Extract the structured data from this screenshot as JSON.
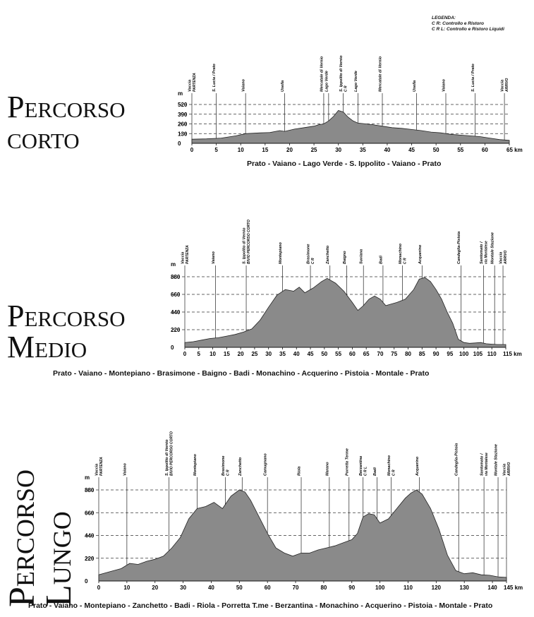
{
  "legend": {
    "title": "LEGENDA:",
    "items": [
      "C R: Controllo e Ristoro",
      "C R L: Controllo e Ristoro Liquidi"
    ]
  },
  "colors": {
    "fill": "#8a8a8a",
    "stroke": "#222222",
    "dash": "#333333"
  },
  "chart_data": [
    {
      "type": "area",
      "title": "Percorso corto",
      "title_lines": [
        "Percorso",
        "corto"
      ],
      "subtitle": "Prato - Vaiano - Lago Verde - S. Ippolito - Vaiano - Prato",
      "ylabel": "m",
      "xunit": "km",
      "xlim": [
        0,
        65
      ],
      "ylim": [
        0,
        520
      ],
      "xticks": [
        0,
        5,
        10,
        15,
        20,
        25,
        30,
        35,
        40,
        45,
        50,
        55,
        60,
        65
      ],
      "xtick_labels": [
        "0",
        "5",
        "10",
        "15",
        "20",
        "25",
        "30",
        "35",
        "40",
        "45",
        "50",
        "55",
        "60",
        "65 km"
      ],
      "yticks": [
        0,
        130,
        260,
        390,
        520
      ],
      "series": [
        {
          "x": [
            0,
            3,
            6,
            9,
            11,
            14,
            16,
            18,
            19,
            21,
            23,
            25,
            26,
            27,
            28,
            29,
            30,
            31,
            32,
            33,
            34,
            35,
            37,
            39,
            41,
            43,
            45,
            47,
            49,
            51,
            53,
            55,
            57,
            59,
            61,
            63,
            65
          ],
          "values": [
            55,
            60,
            70,
            100,
            130,
            140,
            145,
            170,
            160,
            190,
            210,
            230,
            250,
            260,
            300,
            360,
            440,
            420,
            350,
            300,
            270,
            265,
            250,
            230,
            210,
            200,
            185,
            170,
            150,
            140,
            120,
            110,
            100,
            90,
            70,
            50,
            40
          ]
        }
      ],
      "markers": [
        {
          "x": 0,
          "label": "Vaccia",
          "sub": "PARTENZA"
        },
        {
          "x": 5,
          "label": "S. Lucia / Prato",
          "sub": ""
        },
        {
          "x": 11,
          "label": "Vaiano",
          "sub": ""
        },
        {
          "x": 19,
          "label": "Usella",
          "sub": ""
        },
        {
          "x": 27,
          "label": "Mercatale di Vernio",
          "sub": ""
        },
        {
          "x": 28,
          "label": "Lago Verde",
          "sub": ""
        },
        {
          "x": 31,
          "label": "S. Ippolito di Vernio",
          "sub": "C R"
        },
        {
          "x": 34,
          "label": "Lago Verde",
          "sub": ""
        },
        {
          "x": 39,
          "label": "Mercatale di Vernio",
          "sub": ""
        },
        {
          "x": 46,
          "label": "Usella",
          "sub": ""
        },
        {
          "x": 52,
          "label": "Vaiano",
          "sub": ""
        },
        {
          "x": 58,
          "label": "S. Lucia / Prato",
          "sub": ""
        },
        {
          "x": 64,
          "label": "Vaccia",
          "sub": "ARRIVO"
        }
      ]
    },
    {
      "type": "area",
      "title": "Percorso Medio",
      "title_lines": [
        "Percorso",
        "Medio"
      ],
      "subtitle": "Prato - Vaiano - Montepiano - Brasimone - Baigno - Badi - Monachino - Acquerino - Pistoia - Montale - Prato",
      "ylabel": "m",
      "xunit": "km",
      "xlim": [
        0,
        115
      ],
      "ylim": [
        0,
        880
      ],
      "xticks": [
        0,
        5,
        10,
        15,
        20,
        25,
        30,
        35,
        40,
        45,
        50,
        55,
        60,
        65,
        70,
        75,
        80,
        85,
        90,
        95,
        100,
        105,
        110,
        115
      ],
      "xtick_labels": [
        "0",
        "5",
        "10",
        "15",
        "20",
        "25",
        "30",
        "35",
        "40",
        "45",
        "50",
        "55",
        "60",
        "65",
        "70",
        "75",
        "80",
        "85",
        "90",
        "95",
        "100",
        "105",
        "110",
        "115 km"
      ],
      "yticks": [
        0,
        220,
        440,
        660,
        880
      ],
      "series": [
        {
          "x": [
            0,
            3,
            6,
            9,
            12,
            15,
            18,
            21,
            24,
            27,
            30,
            33,
            36,
            39,
            41,
            43,
            46,
            49,
            51,
            54,
            57,
            60,
            62,
            64,
            66,
            68,
            70,
            72,
            74,
            76,
            79,
            82,
            84,
            86,
            88,
            90,
            92,
            94,
            96,
            98,
            100,
            102,
            104,
            106,
            108,
            110,
            112,
            115
          ],
          "values": [
            60,
            70,
            90,
            110,
            120,
            140,
            160,
            190,
            230,
            340,
            500,
            650,
            720,
            700,
            750,
            680,
            740,
            820,
            860,
            800,
            700,
            560,
            460,
            520,
            600,
            640,
            600,
            520,
            540,
            560,
            600,
            720,
            850,
            870,
            820,
            720,
            600,
            440,
            300,
            100,
            60,
            50,
            55,
            60,
            45,
            40,
            35,
            35
          ]
        }
      ],
      "markers": [
        {
          "x": 0,
          "label": "Vaccia",
          "sub": "PARTENZA"
        },
        {
          "x": 11,
          "label": "Vaiano",
          "sub": ""
        },
        {
          "x": 22,
          "label": "S. Ippolito di Vernio",
          "sub": "BIVIO PERCORSO CORTO"
        },
        {
          "x": 35,
          "label": "Montepiano",
          "sub": ""
        },
        {
          "x": 45,
          "label": "Brasimone",
          "sub": "C R"
        },
        {
          "x": 52,
          "label": "Zanchetto",
          "sub": ""
        },
        {
          "x": 58,
          "label": "Baigno",
          "sub": ""
        },
        {
          "x": 64,
          "label": "Suviana",
          "sub": ""
        },
        {
          "x": 71,
          "label": "Badi",
          "sub": ""
        },
        {
          "x": 78,
          "label": "Monachino",
          "sub": "C R"
        },
        {
          "x": 85,
          "label": "Acquerino",
          "sub": ""
        },
        {
          "x": 99,
          "label": "Candeglia-Pistoia",
          "sub": ""
        },
        {
          "x": 107,
          "label": "Santomato /",
          "sub": "via Montalese"
        },
        {
          "x": 111,
          "label": "Montale Stazione",
          "sub": ""
        },
        {
          "x": 114,
          "label": "Vaccia",
          "sub": "ARRIVO"
        }
      ]
    },
    {
      "type": "area",
      "title": "Percorso Lungo",
      "title_lines": [
        "Percorso",
        "Lungo"
      ],
      "subtitle": "Prato - Vaiano - Montepiano - Zanchetto - Badi - Riola - Porretta T.me - Berzantina - Monachino - Acquerino - Pistoia - Montale - Prato",
      "ylabel": "m",
      "xunit": "km",
      "xlim": [
        0,
        145
      ],
      "ylim": [
        0,
        880
      ],
      "xticks": [
        0,
        10,
        20,
        30,
        40,
        50,
        60,
        70,
        80,
        90,
        100,
        110,
        120,
        130,
        140,
        145
      ],
      "xtick_labels": [
        "0",
        "10",
        "20",
        "30",
        "40",
        "50",
        "60",
        "70",
        "80",
        "90",
        "100",
        "110",
        "120",
        "130",
        "140",
        "145 km"
      ],
      "yticks": [
        0,
        220,
        440,
        660,
        880
      ],
      "series": [
        {
          "x": [
            0,
            4,
            8,
            11,
            14,
            17,
            20,
            23,
            26,
            29,
            32,
            35,
            38,
            41,
            44,
            47,
            50,
            52,
            54,
            57,
            60,
            63,
            66,
            69,
            72,
            75,
            78,
            81,
            84,
            87,
            90,
            92,
            94,
            96,
            98,
            100,
            103,
            106,
            109,
            111,
            113,
            115,
            118,
            121,
            124,
            127,
            130,
            133,
            136,
            139,
            142,
            145
          ],
          "values": [
            60,
            90,
            120,
            170,
            160,
            190,
            210,
            240,
            320,
            420,
            600,
            700,
            720,
            760,
            700,
            820,
            880,
            860,
            780,
            620,
            460,
            320,
            270,
            240,
            270,
            270,
            300,
            320,
            340,
            370,
            400,
            460,
            620,
            650,
            640,
            560,
            600,
            700,
            800,
            850,
            880,
            840,
            700,
            500,
            250,
            100,
            70,
            80,
            60,
            55,
            40,
            35
          ]
        }
      ],
      "markers": [
        {
          "x": 0,
          "label": "Vaccia",
          "sub": "PARTENZA"
        },
        {
          "x": 10,
          "label": "Vaiano",
          "sub": ""
        },
        {
          "x": 25,
          "label": "S. Ippolito di Vernio",
          "sub": "BIVIO PERCORSO CORTO"
        },
        {
          "x": 35,
          "label": "Montepiano",
          "sub": ""
        },
        {
          "x": 45,
          "label": "Brasimone",
          "sub": "C R"
        },
        {
          "x": 51,
          "label": "Zanchetto",
          "sub": ""
        },
        {
          "x": 60,
          "label": "Camugnano",
          "sub": ""
        },
        {
          "x": 72,
          "label": "Riola",
          "sub": ""
        },
        {
          "x": 82,
          "label": "Marano",
          "sub": ""
        },
        {
          "x": 89,
          "label": "Porretta Terme",
          "sub": ""
        },
        {
          "x": 94,
          "label": "Berzantina",
          "sub": "C R L"
        },
        {
          "x": 99,
          "label": "Badi",
          "sub": ""
        },
        {
          "x": 104,
          "label": "Monachino",
          "sub": "C R"
        },
        {
          "x": 114,
          "label": "Acquerino",
          "sub": ""
        },
        {
          "x": 128,
          "label": "Candeglia-Pistoia",
          "sub": ""
        },
        {
          "x": 137,
          "label": "Santomato /",
          "sub": "via Montalese"
        },
        {
          "x": 142,
          "label": "Montale Stazione",
          "sub": ""
        },
        {
          "x": 145,
          "label": "Vaccia",
          "sub": "ARRIVO"
        }
      ]
    }
  ]
}
